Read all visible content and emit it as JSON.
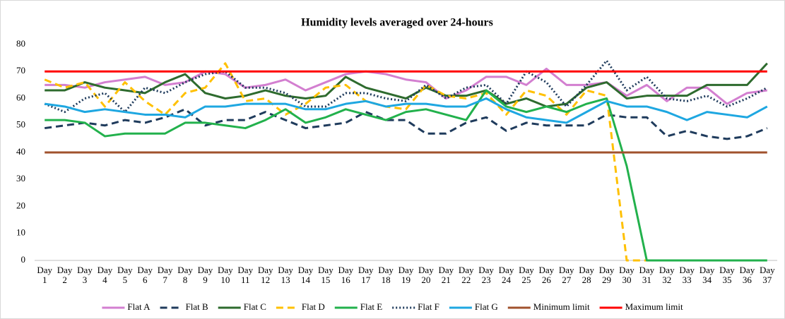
{
  "chart_data": {
    "type": "line",
    "title": "Humidity levels averaged over 24-hours",
    "categories": [
      "Day 1",
      "Day 2",
      "Day 3",
      "Day 4",
      "Day 5",
      "Day 6",
      "Day 7",
      "Day 8",
      "Day 9",
      "Day 10",
      "Day 11",
      "Day 12",
      "Day 13",
      "Day 14",
      "Day 15",
      "Day 16",
      "Day 17",
      "Day 18",
      "Day 19",
      "Day 20",
      "Day 21",
      "Day 22",
      "Day 23",
      "Day 24",
      "Day 25",
      "Day 26",
      "Day 27",
      "Day 28",
      "Day 29",
      "Day 30",
      "Day 31",
      "Day 32",
      "Day 33",
      "Day 34",
      "Day 35",
      "Day 36",
      "Day 37"
    ],
    "ylim": [
      0,
      80
    ],
    "yticks": [
      0,
      10,
      20,
      30,
      40,
      50,
      60,
      70,
      80
    ],
    "grid": false,
    "legend": "bottom",
    "series": [
      {
        "name": "Flat A",
        "color": "#d37fd0",
        "style": "solid",
        "values": [
          65,
          65,
          64,
          66,
          67,
          68,
          65,
          66,
          70,
          69,
          64,
          65,
          67,
          63,
          66,
          69,
          70,
          69,
          67,
          66,
          60,
          63,
          68,
          68,
          65,
          71,
          65,
          65,
          66,
          61,
          65,
          59,
          64,
          64,
          58,
          62,
          63
        ]
      },
      {
        "name": "Flat B",
        "color": "#1f3b5c",
        "style": "dashed",
        "values": [
          49,
          50,
          51,
          50,
          52,
          51,
          53,
          56,
          50,
          52,
          52,
          55,
          52,
          49,
          50,
          51,
          55,
          52,
          52,
          47,
          47,
          51,
          53,
          48,
          51,
          50,
          50,
          50,
          54,
          53,
          53,
          46,
          48,
          46,
          45,
          46,
          49
        ]
      },
      {
        "name": "Flat C",
        "color": "#2e6b2e",
        "style": "solid",
        "values": [
          63,
          63,
          66,
          64,
          63,
          62,
          66,
          69,
          62,
          60,
          61,
          63,
          61,
          60,
          61,
          68,
          64,
          62,
          60,
          64,
          61,
          61,
          63,
          58,
          60,
          57,
          58,
          64,
          66,
          60,
          61,
          61,
          61,
          65,
          65,
          65,
          73
        ]
      },
      {
        "name": "Flat D",
        "color": "#ffc000",
        "style": "dashed",
        "values": [
          67,
          64,
          66,
          57,
          66,
          59,
          54,
          62,
          64,
          73,
          59,
          60,
          54,
          58,
          64,
          65,
          59,
          57,
          56,
          65,
          61,
          60,
          62,
          54,
          63,
          61,
          54,
          63,
          61,
          0,
          0,
          0,
          0,
          0,
          0,
          0,
          0
        ]
      },
      {
        "name": "Flat E",
        "color": "#22b14c",
        "style": "solid",
        "values": [
          52,
          52,
          51,
          46,
          47,
          47,
          47,
          51,
          51,
          50,
          49,
          52,
          56,
          51,
          53,
          56,
          54,
          52,
          55,
          56,
          54,
          52,
          63,
          57,
          55,
          57,
          55,
          58,
          60,
          35,
          0,
          0,
          0,
          0,
          0,
          0,
          0
        ]
      },
      {
        "name": "Flat F",
        "color": "#1f3b5c",
        "style": "dotted",
        "values": [
          58,
          55,
          60,
          62,
          55,
          64,
          62,
          66,
          69,
          70,
          64,
          64,
          62,
          57,
          57,
          62,
          62,
          60,
          59,
          65,
          60,
          64,
          65,
          58,
          70,
          66,
          57,
          65,
          74,
          63,
          68,
          60,
          59,
          61,
          57,
          60,
          64
        ]
      },
      {
        "name": "Flat G",
        "color": "#1ea7e1",
        "style": "solid",
        "values": [
          58,
          57,
          55,
          56,
          55,
          54,
          54,
          53,
          57,
          57,
          58,
          58,
          58,
          56,
          56,
          58,
          59,
          57,
          58,
          58,
          57,
          57,
          60,
          56,
          53,
          52,
          51,
          55,
          59,
          57,
          57,
          55,
          52,
          55,
          54,
          53,
          57
        ]
      },
      {
        "name": "Minimum limit",
        "color": "#a0522d",
        "style": "solid",
        "values": [
          40,
          40,
          40,
          40,
          40,
          40,
          40,
          40,
          40,
          40,
          40,
          40,
          40,
          40,
          40,
          40,
          40,
          40,
          40,
          40,
          40,
          40,
          40,
          40,
          40,
          40,
          40,
          40,
          40,
          40,
          40,
          40,
          40,
          40,
          40,
          40,
          40
        ]
      },
      {
        "name": "Maximum limit",
        "color": "#ff0000",
        "style": "solid",
        "values": [
          70,
          70,
          70,
          70,
          70,
          70,
          70,
          70,
          70,
          70,
          70,
          70,
          70,
          70,
          70,
          70,
          70,
          70,
          70,
          70,
          70,
          70,
          70,
          70,
          70,
          70,
          70,
          70,
          70,
          70,
          70,
          70,
          70,
          70,
          70,
          70,
          70
        ]
      }
    ]
  }
}
